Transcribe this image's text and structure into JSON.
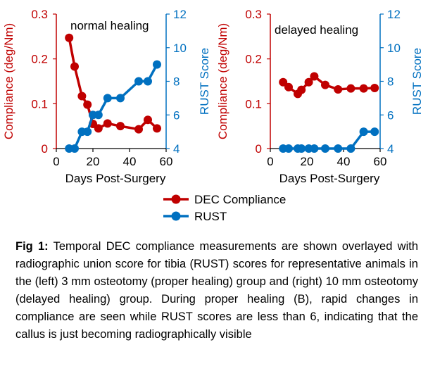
{
  "colors": {
    "compliance": "#c00000",
    "rust": "#0070c0",
    "axis": "#000000"
  },
  "legend": {
    "compliance_label": "DEC Compliance",
    "rust_label": "RUST"
  },
  "caption": {
    "label": "Fig 1:",
    "text": "Temporal DEC compliance measurements are shown overlayed with radiographic union score for tibia (RUST) scores for representative animals in the (left) 3 mm osteotomy (proper healing) group and (right) 10 mm osteotomy (delayed healing) group. During proper healing (B), rapid changes in compliance are seen while RUST scores are less than 6, indicating that the callus is just becoming radiographically visible"
  },
  "chart_data": [
    {
      "type": "line",
      "annotation": "normal healing",
      "xlabel": "Days Post-Surgery",
      "ylabel": "Compliance (deg/Nm)",
      "y2label": "RUST Score",
      "xlim": [
        0,
        60
      ],
      "xticks": [
        0,
        20,
        40,
        60
      ],
      "ylim": [
        0,
        0.3
      ],
      "yticks": [
        0,
        0.1,
        0.2,
        0.3
      ],
      "ytick_labels": [
        "0",
        "0.1",
        "0.2",
        "0.3"
      ],
      "y2lim": [
        4,
        12
      ],
      "y2ticks": [
        4,
        6,
        8,
        10,
        12
      ],
      "series": [
        {
          "name": "DEC Compliance",
          "axis": "left",
          "x": [
            7,
            10,
            14,
            17,
            20,
            23,
            28,
            35,
            45,
            50,
            55
          ],
          "y": [
            0.247,
            0.183,
            0.117,
            0.098,
            0.055,
            0.045,
            0.056,
            0.05,
            0.043,
            0.064,
            0.045
          ]
        },
        {
          "name": "RUST",
          "axis": "right",
          "x": [
            7,
            10,
            14,
            17,
            20,
            23,
            28,
            35,
            45,
            50,
            55
          ],
          "y": [
            4,
            4,
            5,
            5,
            6,
            6,
            7,
            7,
            8,
            8,
            9
          ]
        }
      ]
    },
    {
      "type": "line",
      "annotation": "delayed healing",
      "xlabel": "Days Post-Surgery",
      "ylabel": "Compliance (deg/Nm)",
      "y2label": "RUST Score",
      "xlim": [
        0,
        60
      ],
      "xticks": [
        0,
        20,
        40,
        60
      ],
      "ylim": [
        0,
        0.3
      ],
      "yticks": [
        0,
        0.1,
        0.2,
        0.3
      ],
      "ytick_labels": [
        "0",
        "0.1",
        "0.2",
        "0.3"
      ],
      "y2lim": [
        4,
        12
      ],
      "y2ticks": [
        4,
        6,
        8,
        10,
        12
      ],
      "series": [
        {
          "name": "DEC Compliance",
          "axis": "left",
          "x": [
            7,
            10,
            15,
            17,
            21,
            24,
            30,
            37,
            44,
            51,
            57
          ],
          "y": [
            0.148,
            0.137,
            0.122,
            0.131,
            0.148,
            0.161,
            0.142,
            0.132,
            0.134,
            0.134,
            0.135
          ]
        },
        {
          "name": "RUST",
          "axis": "right",
          "x": [
            7,
            10,
            15,
            17,
            21,
            24,
            30,
            37,
            44,
            51,
            57
          ],
          "y": [
            4,
            4,
            4,
            4,
            4,
            4,
            4,
            4,
            4,
            5,
            5
          ]
        }
      ]
    }
  ]
}
